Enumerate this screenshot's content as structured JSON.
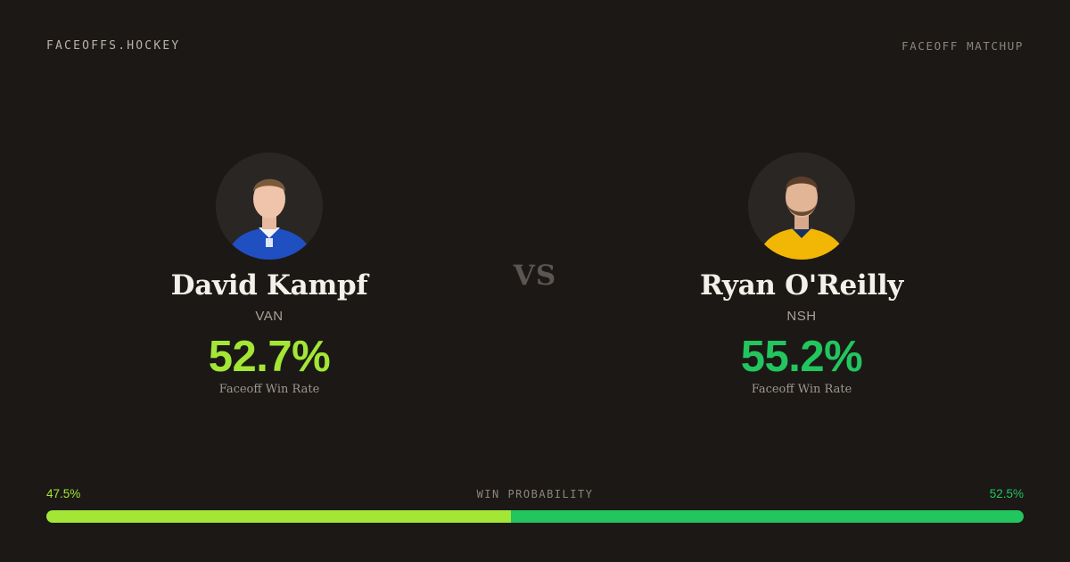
{
  "header": {
    "brand": "FACEOFFS.HOCKEY",
    "label": "FACEOFF MATCHUP"
  },
  "vs": "VS",
  "players": [
    {
      "name": "David Kampf",
      "team": "VAN",
      "win_rate": "52.7%",
      "win_rate_label": "Faceoff Win Rate",
      "color": "#a3e635",
      "jersey_color": "#1f4fc0",
      "avatar_icon": "player-headshot"
    },
    {
      "name": "Ryan O'Reilly",
      "team": "NSH",
      "win_rate": "55.2%",
      "win_rate_label": "Faceoff Win Rate",
      "color": "#22c55e",
      "jersey_color": "#f2b705",
      "avatar_icon": "player-headshot"
    }
  ],
  "win_probability": {
    "title": "WIN PROBABILITY",
    "left_label": "47.5%",
    "right_label": "52.5%",
    "left_value": 47.5,
    "right_value": 52.5,
    "left_color": "#a3e635",
    "right_color": "#22c55e"
  }
}
